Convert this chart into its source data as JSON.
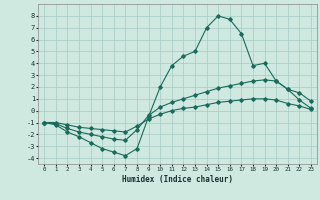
{
  "xlabel": "Humidex (Indice chaleur)",
  "bg_color": "#cfe8e0",
  "grid_color": "#aacfc8",
  "line_color": "#1a6b5a",
  "xlim": [
    -0.5,
    23.5
  ],
  "ylim": [
    -4.5,
    9.0
  ],
  "yticks": [
    -4,
    -3,
    -2,
    -1,
    0,
    1,
    2,
    3,
    4,
    5,
    6,
    7,
    8
  ],
  "xticks": [
    0,
    1,
    2,
    3,
    4,
    5,
    6,
    7,
    8,
    9,
    10,
    11,
    12,
    13,
    14,
    15,
    16,
    17,
    18,
    19,
    20,
    21,
    22,
    23
  ],
  "curve1_x": [
    0,
    1,
    2,
    3,
    4,
    5,
    6,
    7,
    8,
    9,
    10,
    11,
    12,
    13,
    14,
    15,
    16,
    17,
    18,
    19,
    20,
    21,
    22,
    23
  ],
  "curve1_y": [
    -1.0,
    -1.2,
    -1.8,
    -2.2,
    -2.7,
    -3.2,
    -3.5,
    -3.8,
    -3.2,
    -0.5,
    2.0,
    3.8,
    4.6,
    5.0,
    7.0,
    8.0,
    7.7,
    6.5,
    3.8,
    4.0,
    2.5,
    1.8,
    0.9,
    0.2
  ],
  "curve2_x": [
    0,
    1,
    2,
    3,
    4,
    5,
    6,
    7,
    8,
    9,
    10,
    11,
    12,
    13,
    14,
    15,
    16,
    17,
    18,
    19,
    20,
    21,
    22,
    23
  ],
  "curve2_y": [
    -1.0,
    -1.1,
    -1.5,
    -1.8,
    -2.0,
    -2.2,
    -2.4,
    -2.5,
    -1.6,
    -0.4,
    0.3,
    0.7,
    1.0,
    1.3,
    1.6,
    1.9,
    2.1,
    2.3,
    2.5,
    2.6,
    2.5,
    1.8,
    1.5,
    0.8
  ],
  "curve3_x": [
    0,
    1,
    2,
    3,
    4,
    5,
    6,
    7,
    8,
    9,
    10,
    11,
    12,
    13,
    14,
    15,
    16,
    17,
    18,
    19,
    20,
    21,
    22,
    23
  ],
  "curve3_y": [
    -1.0,
    -1.0,
    -1.2,
    -1.4,
    -1.5,
    -1.6,
    -1.7,
    -1.8,
    -1.3,
    -0.7,
    -0.3,
    0.0,
    0.2,
    0.3,
    0.5,
    0.7,
    0.8,
    0.9,
    1.0,
    1.0,
    0.9,
    0.6,
    0.4,
    0.1
  ]
}
